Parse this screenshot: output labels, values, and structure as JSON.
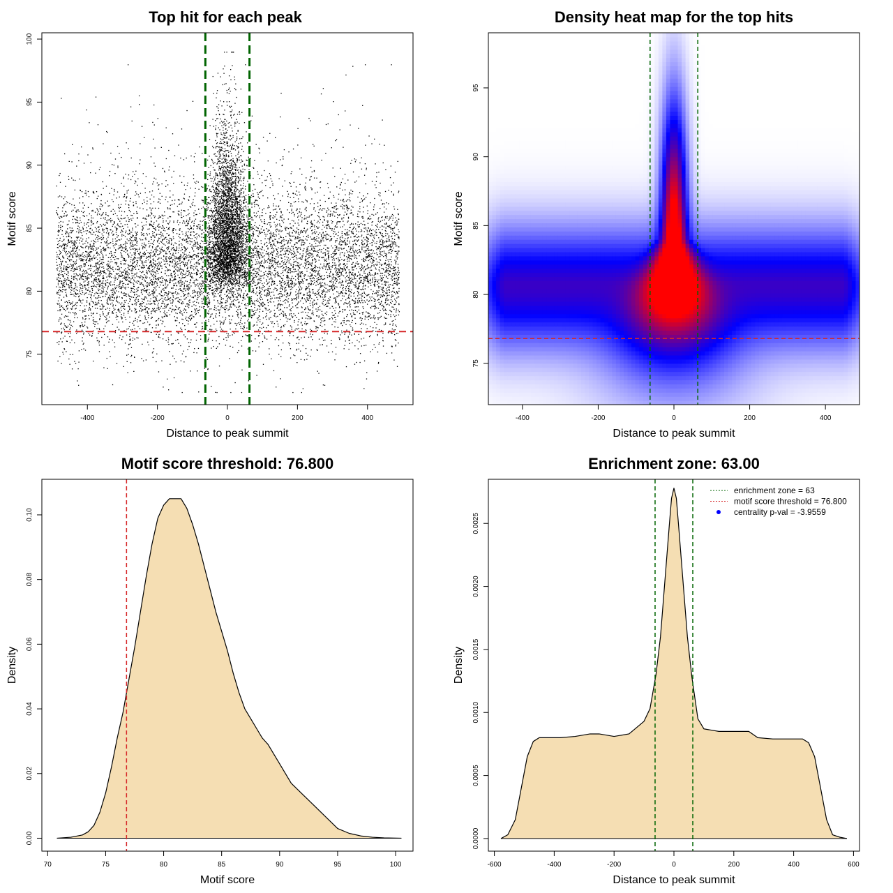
{
  "colors": {
    "threshold_line": "#d62728",
    "zone_line": "#006400",
    "density_fill": "#f5deb3",
    "heat_low": "#ffffff",
    "heat_mid": "#0000ff",
    "heat_high": "#ff0000",
    "points": "#000000",
    "legend_dot": "#0000ff"
  },
  "chart_data": [
    {
      "type": "scatter",
      "title": "Top hit for each peak",
      "xlabel": "Distance to peak summit",
      "ylabel": "Motif score",
      "xlim": [
        -530,
        530
      ],
      "ylim": [
        71,
        100.5
      ],
      "xticks": [
        -400,
        -200,
        0,
        200,
        400
      ],
      "yticks": [
        75,
        80,
        85,
        90,
        95,
        100
      ],
      "grid": false,
      "hlines": [
        76.8
      ],
      "vlines": [
        -63,
        63
      ],
      "point_distribution": {
        "background": {
          "x_range": [
            -490,
            490
          ],
          "score_mode": 81,
          "score_range": [
            72,
            98
          ],
          "approx_points": 9000
        },
        "central_peak": {
          "x_center": 0,
          "x_spread": 20,
          "score_range": [
            76,
            99
          ],
          "approx_points": 3500
        }
      }
    },
    {
      "type": "heatmap",
      "title": "Density heat map for the top hits",
      "xlabel": "Distance to peak summit",
      "ylabel": "Motif score",
      "xlim": [
        -490,
        490
      ],
      "ylim": [
        72,
        99
      ],
      "xticks": [
        -400,
        -200,
        0,
        200,
        400
      ],
      "yticks": [
        75,
        80,
        85,
        90,
        95
      ],
      "grid": false,
      "hlines": [
        76.8
      ],
      "vlines": [
        -63,
        63
      ],
      "color_scale": [
        "white",
        "blue",
        "red"
      ]
    },
    {
      "type": "area",
      "title": "Motif score threshold: 76.800",
      "xlabel": "Motif score",
      "ylabel": "Density",
      "xlim": [
        69.5,
        101.5
      ],
      "ylim": [
        -0.004,
        0.111
      ],
      "xticks": [
        70,
        75,
        80,
        85,
        90,
        95,
        100
      ],
      "yticks": [
        "0.00",
        "0.02",
        "0.04",
        "0.06",
        "0.08",
        "0.10"
      ],
      "grid": false,
      "vlines": [
        76.8
      ],
      "x": [
        70.8,
        72,
        73,
        73.5,
        74,
        74.5,
        75,
        75.5,
        76,
        76.5,
        77,
        77.5,
        78,
        78.5,
        79,
        79.5,
        80,
        80.5,
        81,
        81.5,
        82,
        82.5,
        83,
        83.5,
        84,
        84.5,
        85,
        85.5,
        86,
        86.5,
        87,
        87.5,
        88,
        88.5,
        89,
        89.5,
        90,
        91,
        92,
        93,
        94,
        95,
        96,
        97,
        98,
        99,
        100.5
      ],
      "y": [
        0,
        0.0003,
        0.001,
        0.002,
        0.004,
        0.008,
        0.014,
        0.022,
        0.031,
        0.039,
        0.049,
        0.059,
        0.07,
        0.081,
        0.091,
        0.099,
        0.103,
        0.105,
        0.105,
        0.105,
        0.102,
        0.097,
        0.091,
        0.084,
        0.077,
        0.07,
        0.064,
        0.058,
        0.051,
        0.045,
        0.04,
        0.037,
        0.034,
        0.031,
        0.029,
        0.026,
        0.023,
        0.017,
        0.0135,
        0.01,
        0.0065,
        0.003,
        0.0015,
        0.0007,
        0.0003,
        0.0001,
        0
      ]
    },
    {
      "type": "area",
      "title": "Enrichment zone: 63.00",
      "xlabel": "Distance to peak summit",
      "ylabel": "Density",
      "xlim": [
        -620,
        620
      ],
      "ylim": [
        -0.0001,
        0.00285
      ],
      "xticks": [
        -600,
        -400,
        -200,
        0,
        200,
        400,
        600
      ],
      "yticks": [
        "0.0000",
        "0.0005",
        "0.0010",
        "0.0015",
        "0.0020",
        "0.0025"
      ],
      "grid": false,
      "vlines": [
        -63,
        63
      ],
      "x": [
        -578,
        -555,
        -530,
        -510,
        -490,
        -470,
        -450,
        -420,
        -380,
        -330,
        -280,
        -250,
        -200,
        -150,
        -100,
        -80,
        -60,
        -45,
        -35,
        -25,
        -15,
        -8,
        0,
        8,
        15,
        25,
        35,
        45,
        60,
        80,
        100,
        150,
        200,
        250,
        280,
        330,
        380,
        410,
        430,
        450,
        470,
        490,
        510,
        530,
        555,
        578
      ],
      "y": [
        0,
        3e-05,
        0.00015,
        0.0004,
        0.00065,
        0.00077,
        0.0008,
        0.0008,
        0.0008,
        0.00081,
        0.00083,
        0.00083,
        0.00081,
        0.00083,
        0.00093,
        0.00103,
        0.0013,
        0.0016,
        0.0019,
        0.0022,
        0.0025,
        0.0027,
        0.00278,
        0.0027,
        0.0025,
        0.0022,
        0.0019,
        0.0016,
        0.00128,
        0.00095,
        0.00087,
        0.00085,
        0.00085,
        0.00085,
        0.0008,
        0.00079,
        0.00079,
        0.00079,
        0.00079,
        0.00076,
        0.00065,
        0.0004,
        0.00015,
        3e-05,
        1e-05,
        0
      ],
      "legend": {
        "placement": "top-right",
        "entries": [
          {
            "label": "enrichment zone = 63",
            "style": "green-dotted-line"
          },
          {
            "label": "motif score threshold = 76.800",
            "style": "red-dotted-line"
          },
          {
            "label": "centrality p-val = -3.9559",
            "style": "blue-dot"
          }
        ]
      }
    }
  ]
}
